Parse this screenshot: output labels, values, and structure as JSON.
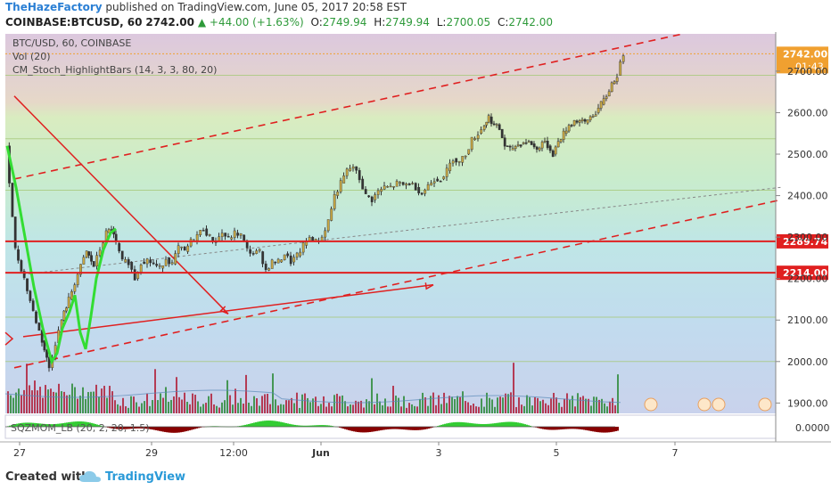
{
  "header": {
    "author": "TheHazeFactory",
    "published_text": "published on TradingView.com, June 05, 2017 20:58 EST",
    "symbol_line": "COINBASE:BTCUSD, 60",
    "last": "2742.00",
    "change": "+44.00 (+1.63%)",
    "open_label": "O:",
    "open": "2749.94",
    "high_label": "H:",
    "high": "2749.94",
    "low_label": "L:",
    "low": "2700.05",
    "close_label": "C:",
    "close": "2742.00"
  },
  "legend": {
    "line1": "BTC/USD, 60, COINBASE",
    "line2": "Vol (20)",
    "line3": "CM_Stoch_HighlightBars (14, 3, 3, 80, 20)",
    "indicator": "SQZMOM_LB (20, 2, 20, 1.5)"
  },
  "footer": {
    "created_with": "Created with",
    "brand": "TradingView"
  },
  "colors": {
    "accent_red": "#e02020",
    "up_candle": "#c9a844",
    "highlight_green": "#33dd33",
    "price_tag_orange": "#f0a030",
    "level_tag_red": "#e02020"
  },
  "chart_data": {
    "type": "candlestick",
    "y_ticks": [
      2700,
      2600,
      2500,
      2400,
      2300,
      2200,
      2100,
      2000,
      1900
    ],
    "y_tick_labels": [
      "2700.00",
      "2600.00",
      "2500.00",
      "2400.00",
      "2300.00",
      "2200.00",
      "2100.00",
      "2000.00",
      "1900.00"
    ],
    "ylim": [
      1875,
      2790
    ],
    "x_labels": [
      "27",
      "29",
      "12:00",
      "Jun",
      "3",
      "5",
      "7"
    ],
    "last_price": 2742.0,
    "last_price_label": "2742.00",
    "countdown_label": "01:43",
    "horizontal_levels": [
      {
        "value": 2289.74,
        "label": "2289.74",
        "color": "#e02020"
      },
      {
        "value": 2214.0,
        "label": "2214.00",
        "color": "#e02020"
      }
    ],
    "fib_levels": [
      2690,
      2537,
      2413,
      2289.74,
      2214,
      2107,
      2000
    ],
    "close_path": [
      [
        0,
        2520
      ],
      [
        10,
        2270
      ],
      [
        20,
        2200
      ],
      [
        30,
        2120
      ],
      [
        40,
        2050
      ],
      [
        48,
        1985
      ],
      [
        55,
        2045
      ],
      [
        62,
        2100
      ],
      [
        70,
        2150
      ],
      [
        80,
        2210
      ],
      [
        90,
        2265
      ],
      [
        98,
        2230
      ],
      [
        105,
        2270
      ],
      [
        112,
        2310
      ],
      [
        118,
        2320
      ],
      [
        123,
        2285
      ],
      [
        130,
        2240
      ],
      [
        137,
        2240
      ],
      [
        144,
        2200
      ],
      [
        151,
        2240
      ],
      [
        158,
        2245
      ],
      [
        165,
        2235
      ],
      [
        172,
        2225
      ],
      [
        179,
        2250
      ],
      [
        186,
        2235
      ],
      [
        193,
        2275
      ],
      [
        200,
        2265
      ],
      [
        207,
        2290
      ],
      [
        214,
        2305
      ],
      [
        221,
        2320
      ],
      [
        228,
        2300
      ],
      [
        235,
        2290
      ],
      [
        242,
        2310
      ],
      [
        249,
        2295
      ],
      [
        256,
        2310
      ],
      [
        263,
        2305
      ],
      [
        270,
        2270
      ],
      [
        277,
        2260
      ],
      [
        284,
        2265
      ],
      [
        291,
        2220
      ],
      [
        298,
        2240
      ],
      [
        305,
        2240
      ],
      [
        312,
        2260
      ],
      [
        319,
        2240
      ],
      [
        326,
        2255
      ],
      [
        333,
        2280
      ],
      [
        340,
        2300
      ],
      [
        347,
        2290
      ],
      [
        354,
        2300
      ],
      [
        361,
        2340
      ],
      [
        368,
        2400
      ],
      [
        375,
        2430
      ],
      [
        382,
        2460
      ],
      [
        389,
        2470
      ],
      [
        396,
        2440
      ],
      [
        403,
        2400
      ],
      [
        410,
        2390
      ],
      [
        417,
        2410
      ],
      [
        424,
        2420
      ],
      [
        431,
        2420
      ],
      [
        438,
        2430
      ],
      [
        445,
        2425
      ],
      [
        452,
        2430
      ],
      [
        459,
        2420
      ],
      [
        466,
        2405
      ],
      [
        473,
        2425
      ],
      [
        480,
        2440
      ],
      [
        487,
        2440
      ],
      [
        494,
        2460
      ],
      [
        501,
        2490
      ],
      [
        508,
        2480
      ],
      [
        515,
        2500
      ],
      [
        522,
        2535
      ],
      [
        529,
        2550
      ],
      [
        536,
        2570
      ],
      [
        541,
        2590
      ],
      [
        547,
        2570
      ],
      [
        553,
        2560
      ],
      [
        559,
        2520
      ],
      [
        565,
        2510
      ],
      [
        571,
        2520
      ],
      [
        577,
        2525
      ],
      [
        583,
        2530
      ],
      [
        589,
        2525
      ],
      [
        595,
        2510
      ],
      [
        601,
        2530
      ],
      [
        607,
        2520
      ],
      [
        613,
        2500
      ],
      [
        619,
        2530
      ],
      [
        625,
        2550
      ],
      [
        631,
        2570
      ],
      [
        637,
        2580
      ],
      [
        643,
        2580
      ],
      [
        649,
        2575
      ],
      [
        655,
        2590
      ],
      [
        661,
        2600
      ],
      [
        667,
        2620
      ],
      [
        673,
        2640
      ],
      [
        679,
        2670
      ],
      [
        685,
        2690
      ],
      [
        692,
        2742
      ]
    ],
    "green_highlight_path": [
      [
        2,
        2520
      ],
      [
        12,
        2420
      ],
      [
        22,
        2300
      ],
      [
        32,
        2180
      ],
      [
        42,
        2080
      ],
      [
        52,
        2000
      ],
      [
        58,
        2020
      ],
      [
        64,
        2080
      ],
      [
        72,
        2120
      ],
      [
        78,
        2160
      ],
      [
        84,
        2070
      ],
      [
        90,
        2030
      ],
      [
        96,
        2110
      ],
      [
        102,
        2200
      ],
      [
        110,
        2270
      ],
      [
        118,
        2310
      ],
      [
        124,
        2320
      ]
    ],
    "red_diag_from": [
      10,
      2640
    ],
    "red_diag_to": [
      250,
      2115
    ],
    "red_arrow_from": [
      20,
      2060
    ],
    "red_arrow_to": [
      480,
      2185
    ],
    "channel_upper_from": [
      10,
      2440
    ],
    "channel_upper_to": [
      760,
      2790
    ],
    "channel_lower_from": [
      10,
      1985
    ],
    "channel_lower_to": [
      870,
      2390
    ],
    "grey_trend_from": [
      20,
      2210
    ],
    "grey_trend_to": [
      870,
      2420
    ]
  }
}
